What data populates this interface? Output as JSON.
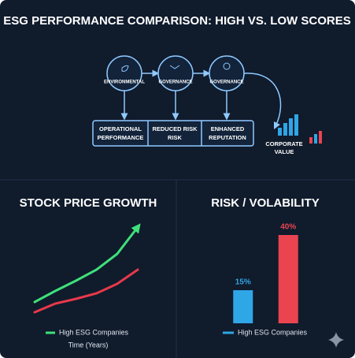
{
  "title": "ESG PERFORMANCE COMPARISON: HIGH VS. LOW SCORES",
  "diagram": {
    "nodes": [
      {
        "label": "ENVIRONMENTAL"
      },
      {
        "label": "GOVERNANCE"
      },
      {
        "label": "GOVERNANCE"
      }
    ],
    "boxes": [
      {
        "label": [
          "OPERATIONAL",
          "PERFORMANCE"
        ]
      },
      {
        "label": [
          "REDUCED RISK",
          "RISK"
        ]
      },
      {
        "label": [
          "ENHANCED",
          "REPUTATION"
        ]
      }
    ],
    "outcome": {
      "label": [
        "CORPORATE",
        "VALUE"
      ]
    }
  },
  "chart_data": [
    {
      "type": "line",
      "title": "STOCK PRICE GROWTH",
      "x_label": "Time (Years)",
      "x": [
        0,
        1,
        2,
        3,
        4,
        5
      ],
      "xlim": [
        0,
        5
      ],
      "ylim": [
        0,
        120
      ],
      "series": [
        {
          "name": "High ESG Companies",
          "color": "#3ee07a",
          "values": [
            17,
            31,
            44,
            58,
            78,
            112
          ]
        },
        {
          "color": "#e8394a",
          "values": [
            4,
            15,
            21,
            28,
            40,
            58
          ]
        }
      ]
    },
    {
      "type": "bar",
      "title": "RISK / VOLABILITY",
      "categories": [
        null,
        null
      ],
      "values": [
        15,
        40
      ],
      "value_labels": [
        "15%",
        "40%"
      ],
      "colors": [
        "#2fa6e6",
        "#ea4450"
      ],
      "ylim": [
        0,
        45
      ],
      "legend": [
        {
          "name": "High ESG Companies",
          "color": "#2fa6e6"
        }
      ]
    }
  ]
}
